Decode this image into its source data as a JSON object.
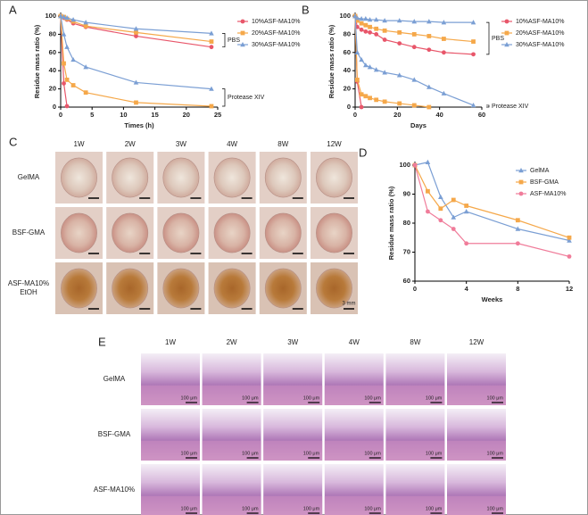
{
  "panel_labels": [
    "A",
    "B",
    "C",
    "D",
    "E"
  ],
  "chart_data": [
    {
      "type": "line",
      "xlabel": "Times (h)",
      "ylabel": "Residue mass ratio (%)",
      "xlim": [
        0,
        25
      ],
      "xticks": [
        0,
        5,
        10,
        15,
        20,
        25
      ],
      "ylim": [
        0,
        100
      ],
      "yticks": [
        0,
        20,
        40,
        60,
        80,
        100
      ],
      "legend_position": "right",
      "legend": [
        {
          "name": "10%ASF-MA10%",
          "color": "#e8566a",
          "marker": "circle"
        },
        {
          "name": "20%ASF-MA10%",
          "color": "#f5a84a",
          "marker": "square"
        },
        {
          "name": "30%ASF-MA10%",
          "color": "#7b9fd4",
          "marker": "triangle"
        }
      ],
      "groups": [
        {
          "label": "PBS",
          "series": [
            {
              "color": "#e8566a",
              "marker": "circle",
              "x": [
                0,
                0.5,
                1,
                2,
                4,
                12,
                24
              ],
              "values": [
                100,
                98,
                96,
                92,
                88,
                78,
                66
              ]
            },
            {
              "color": "#f5a84a",
              "marker": "square",
              "x": [
                0,
                0.5,
                1,
                2,
                4,
                12,
                24
              ],
              "values": [
                100,
                99,
                97,
                94,
                89,
                82,
                72
              ]
            },
            {
              "color": "#7b9fd4",
              "marker": "triangle",
              "x": [
                0,
                0.5,
                1,
                2,
                4,
                12,
                24
              ],
              "values": [
                100,
                99,
                98,
                96,
                93,
                86,
                81
              ]
            }
          ]
        },
        {
          "label": "Protease XIV",
          "series": [
            {
              "color": "#e8566a",
              "marker": "circle",
              "x": [
                0,
                0.5,
                1
              ],
              "values": [
                100,
                26,
                1
              ]
            },
            {
              "color": "#f5a84a",
              "marker": "square",
              "x": [
                0,
                0.5,
                1,
                2,
                4,
                12,
                24
              ],
              "values": [
                100,
                48,
                30,
                24,
                16,
                5,
                1
              ]
            },
            {
              "color": "#7b9fd4",
              "marker": "triangle",
              "x": [
                0,
                0.5,
                1,
                2,
                4,
                12,
                24
              ],
              "values": [
                100,
                80,
                66,
                52,
                44,
                27,
                20
              ]
            }
          ]
        }
      ]
    },
    {
      "type": "line",
      "xlabel": "Days",
      "ylabel": "Residue mass ratio (%)",
      "xlim": [
        0,
        60
      ],
      "xticks": [
        0,
        20,
        40,
        60
      ],
      "ylim": [
        0,
        100
      ],
      "yticks": [
        0,
        20,
        40,
        60,
        80,
        100
      ],
      "legend_position": "right",
      "legend": [
        {
          "name": "10%ASF-MA10%",
          "color": "#e8566a",
          "marker": "circle"
        },
        {
          "name": "20%ASF-MA10%",
          "color": "#f5a84a",
          "marker": "square"
        },
        {
          "name": "30%ASF-MA10%",
          "color": "#7b9fd4",
          "marker": "triangle"
        }
      ],
      "groups": [
        {
          "label": "PBS",
          "series": [
            {
              "color": "#e8566a",
              "marker": "circle",
              "x": [
                0,
                1,
                3,
                5,
                7,
                10,
                14,
                21,
                28,
                35,
                42,
                56
              ],
              "values": [
                100,
                88,
                85,
                83,
                82,
                80,
                74,
                70,
                66,
                63,
                60,
                58
              ]
            },
            {
              "color": "#f5a84a",
              "marker": "square",
              "x": [
                0,
                1,
                3,
                5,
                7,
                10,
                14,
                21,
                28,
                35,
                42,
                56
              ],
              "values": [
                100,
                95,
                92,
                90,
                88,
                86,
                84,
                82,
                80,
                78,
                75,
                72
              ]
            },
            {
              "color": "#7b9fd4",
              "marker": "triangle",
              "x": [
                0,
                1,
                3,
                5,
                7,
                10,
                14,
                21,
                28,
                35,
                42,
                56
              ],
              "values": [
                100,
                98,
                97,
                97,
                96,
                96,
                95,
                95,
                94,
                94,
                93,
                93
              ]
            }
          ]
        },
        {
          "label": "Protease XIV",
          "series": [
            {
              "color": "#e8566a",
              "marker": "circle",
              "x": [
                0,
                1,
                3
              ],
              "values": [
                100,
                28,
                0
              ]
            },
            {
              "color": "#f5a84a",
              "marker": "square",
              "x": [
                0,
                1,
                3,
                5,
                7,
                10,
                14,
                21,
                28,
                35
              ],
              "values": [
                100,
                30,
                14,
                12,
                10,
                8,
                6,
                4,
                2,
                0
              ]
            },
            {
              "color": "#7b9fd4",
              "marker": "triangle",
              "x": [
                0,
                1,
                3,
                5,
                7,
                10,
                14,
                21,
                28,
                35,
                42,
                56
              ],
              "values": [
                100,
                60,
                52,
                46,
                44,
                41,
                38,
                35,
                30,
                22,
                15,
                2
              ]
            }
          ]
        }
      ]
    },
    {
      "type": "line",
      "xlabel": "Weeks",
      "ylabel": "Residue mass ratio (%)",
      "xlim": [
        0,
        12
      ],
      "xticks": [
        0,
        4,
        8,
        12
      ],
      "ylim": [
        60,
        100
      ],
      "yticks": [
        60,
        70,
        80,
        90,
        100
      ],
      "legend_position": "upper right",
      "x": [
        0,
        1,
        2,
        3,
        4,
        8,
        12
      ],
      "series": [
        {
          "name": "GelMA",
          "color": "#7b9fd4",
          "marker": "triangle",
          "values": [
            100,
            101,
            89,
            82,
            84,
            78,
            74
          ]
        },
        {
          "name": "BSF-GMA",
          "color": "#f5a84a",
          "marker": "square",
          "values": [
            100,
            91,
            85,
            88,
            86,
            81,
            75
          ]
        },
        {
          "name": "ASF-MA10%",
          "color": "#f07c9a",
          "marker": "circle",
          "values": [
            100,
            84,
            81,
            78,
            73,
            73,
            68.5
          ]
        }
      ]
    }
  ],
  "photo_grids": [
    {
      "columns": [
        "1W",
        "2W",
        "3W",
        "4W",
        "8W",
        "12W"
      ],
      "rows": [
        [
          "GelMA"
        ],
        [
          "BSF-GMA"
        ],
        [
          "ASF-MA10%",
          "EtOH"
        ]
      ],
      "scale_label": "3 mm"
    },
    {
      "columns": [
        "1W",
        "2W",
        "3W",
        "4W",
        "8W",
        "12W"
      ],
      "rows": [
        [
          "GelMA"
        ],
        [
          "BSF-GMA"
        ],
        [
          "ASF-MA10%"
        ]
      ],
      "scale_label": "100 μm"
    }
  ]
}
